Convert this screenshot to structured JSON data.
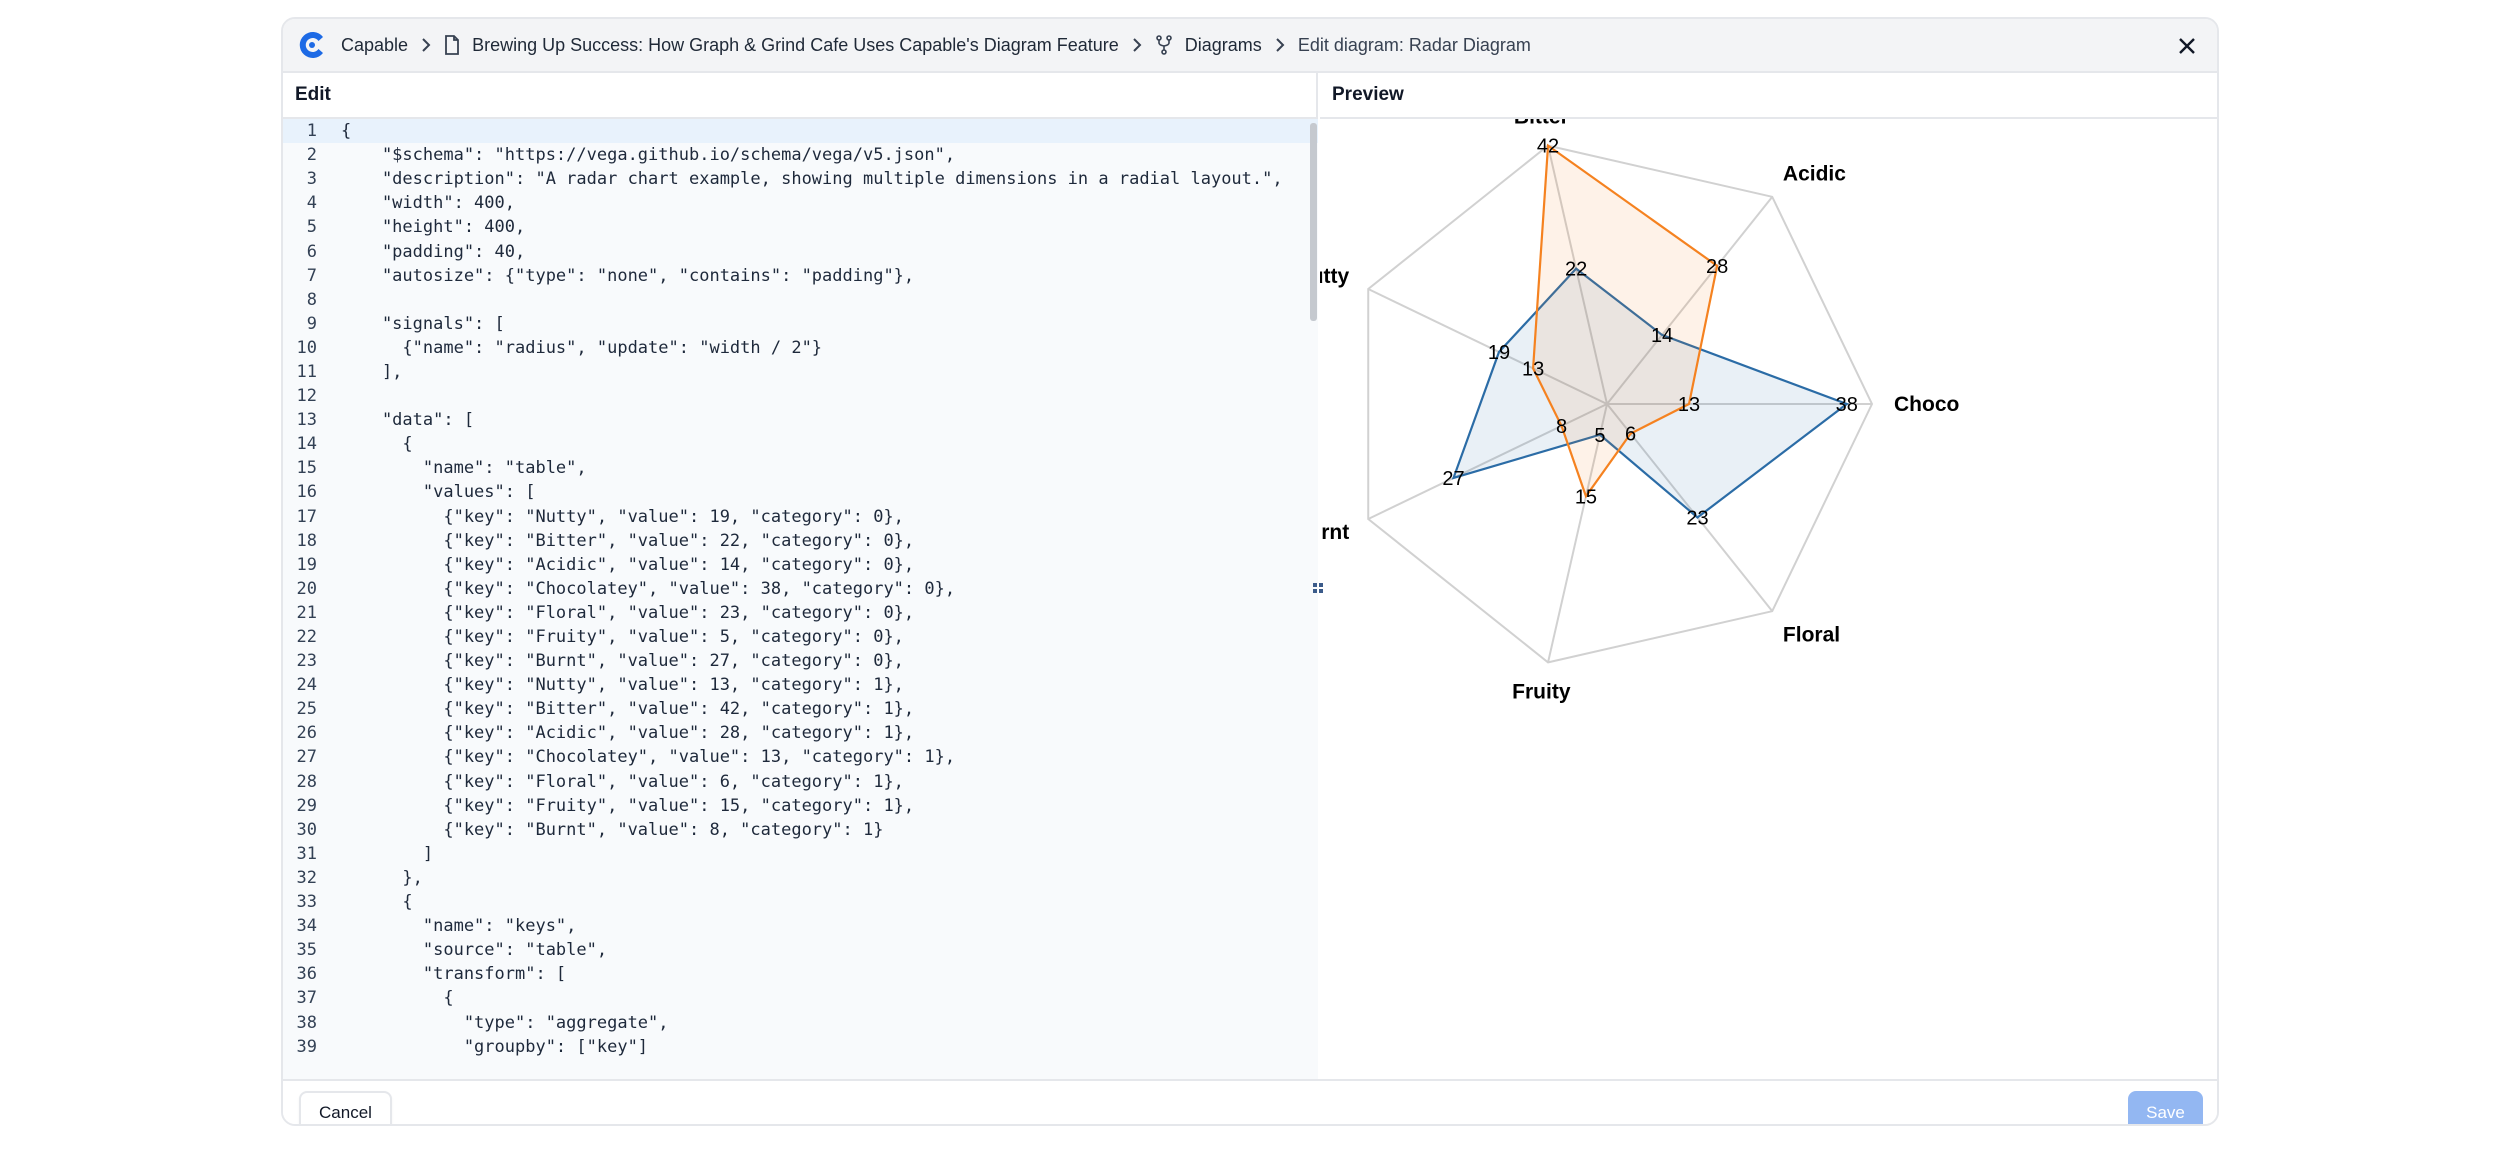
{
  "colors": {
    "accent": "#1d6ae5",
    "series0": "#2b6ca6",
    "series1": "#f58220"
  },
  "breadcrumb": {
    "app": "Capable",
    "document": "Brewing Up Success: How Graph & Grind Cafe Uses Capable's Diagram Feature",
    "section": "Diagrams",
    "current": "Edit diagram: Radar Diagram"
  },
  "edit": {
    "title": "Edit",
    "lines": [
      {
        "n": "1",
        "t": "{"
      },
      {
        "n": "2",
        "t": "    \"$schema\": \"https://vega.github.io/schema/vega/v5.json\","
      },
      {
        "n": "3",
        "t": "    \"description\": \"A radar chart example, showing multiple dimensions in a radial layout.\","
      },
      {
        "n": "4",
        "t": "    \"width\": 400,"
      },
      {
        "n": "5",
        "t": "    \"height\": 400,"
      },
      {
        "n": "6",
        "t": "    \"padding\": 40,"
      },
      {
        "n": "7",
        "t": "    \"autosize\": {\"type\": \"none\", \"contains\": \"padding\"},"
      },
      {
        "n": "8",
        "t": ""
      },
      {
        "n": "9",
        "t": "    \"signals\": ["
      },
      {
        "n": "10",
        "t": "      {\"name\": \"radius\", \"update\": \"width / 2\"}"
      },
      {
        "n": "11",
        "t": "    ],"
      },
      {
        "n": "12",
        "t": ""
      },
      {
        "n": "13",
        "t": "    \"data\": ["
      },
      {
        "n": "14",
        "t": "      {"
      },
      {
        "n": "15",
        "t": "        \"name\": \"table\","
      },
      {
        "n": "16",
        "t": "        \"values\": ["
      },
      {
        "n": "17",
        "t": "          {\"key\": \"Nutty\", \"value\": 19, \"category\": 0},"
      },
      {
        "n": "18",
        "t": "          {\"key\": \"Bitter\", \"value\": 22, \"category\": 0},"
      },
      {
        "n": "19",
        "t": "          {\"key\": \"Acidic\", \"value\": 14, \"category\": 0},"
      },
      {
        "n": "20",
        "t": "          {\"key\": \"Chocolatey\", \"value\": 38, \"category\": 0},"
      },
      {
        "n": "21",
        "t": "          {\"key\": \"Floral\", \"value\": 23, \"category\": 0},"
      },
      {
        "n": "22",
        "t": "          {\"key\": \"Fruity\", \"value\": 5, \"category\": 0},"
      },
      {
        "n": "23",
        "t": "          {\"key\": \"Burnt\", \"value\": 27, \"category\": 0},"
      },
      {
        "n": "24",
        "t": "          {\"key\": \"Nutty\", \"value\": 13, \"category\": 1},"
      },
      {
        "n": "25",
        "t": "          {\"key\": \"Bitter\", \"value\": 42, \"category\": 1},"
      },
      {
        "n": "26",
        "t": "          {\"key\": \"Acidic\", \"value\": 28, \"category\": 1},"
      },
      {
        "n": "27",
        "t": "          {\"key\": \"Chocolatey\", \"value\": 13, \"category\": 1},"
      },
      {
        "n": "28",
        "t": "          {\"key\": \"Floral\", \"value\": 6, \"category\": 1},"
      },
      {
        "n": "29",
        "t": "          {\"key\": \"Fruity\", \"value\": 15, \"category\": 1},"
      },
      {
        "n": "30",
        "t": "          {\"key\": \"Burnt\", \"value\": 8, \"category\": 1}"
      },
      {
        "n": "31",
        "t": "        ]"
      },
      {
        "n": "32",
        "t": "      },"
      },
      {
        "n": "33",
        "t": "      {"
      },
      {
        "n": "34",
        "t": "        \"name\": \"keys\","
      },
      {
        "n": "35",
        "t": "        \"source\": \"table\","
      },
      {
        "n": "36",
        "t": "        \"transform\": ["
      },
      {
        "n": "37",
        "t": "          {"
      },
      {
        "n": "38",
        "t": "            \"type\": \"aggregate\","
      },
      {
        "n": "39",
        "t": "            \"groupby\": [\"key\"]"
      }
    ]
  },
  "preview": {
    "title": "Preview"
  },
  "chart_data": {
    "type": "radar",
    "axes": [
      "Chocolatey",
      "Floral",
      "Fruity",
      "Burnt",
      "Nutty",
      "Bitter",
      "Acidic"
    ],
    "axis_labels": [
      "Choco",
      "Floral",
      "Fruity",
      "Burnt",
      "Nutty",
      "Bitter",
      "Acidic"
    ],
    "series": [
      {
        "category": 0,
        "values": [
          38,
          23,
          5,
          27,
          19,
          22,
          14
        ],
        "color": "#2b6ca6"
      },
      {
        "category": 1,
        "values": [
          13,
          6,
          15,
          8,
          13,
          42,
          28
        ],
        "color": "#f58220"
      }
    ],
    "rmax": 42,
    "grid": true
  },
  "footer": {
    "cancel": "Cancel",
    "save": "Save"
  }
}
